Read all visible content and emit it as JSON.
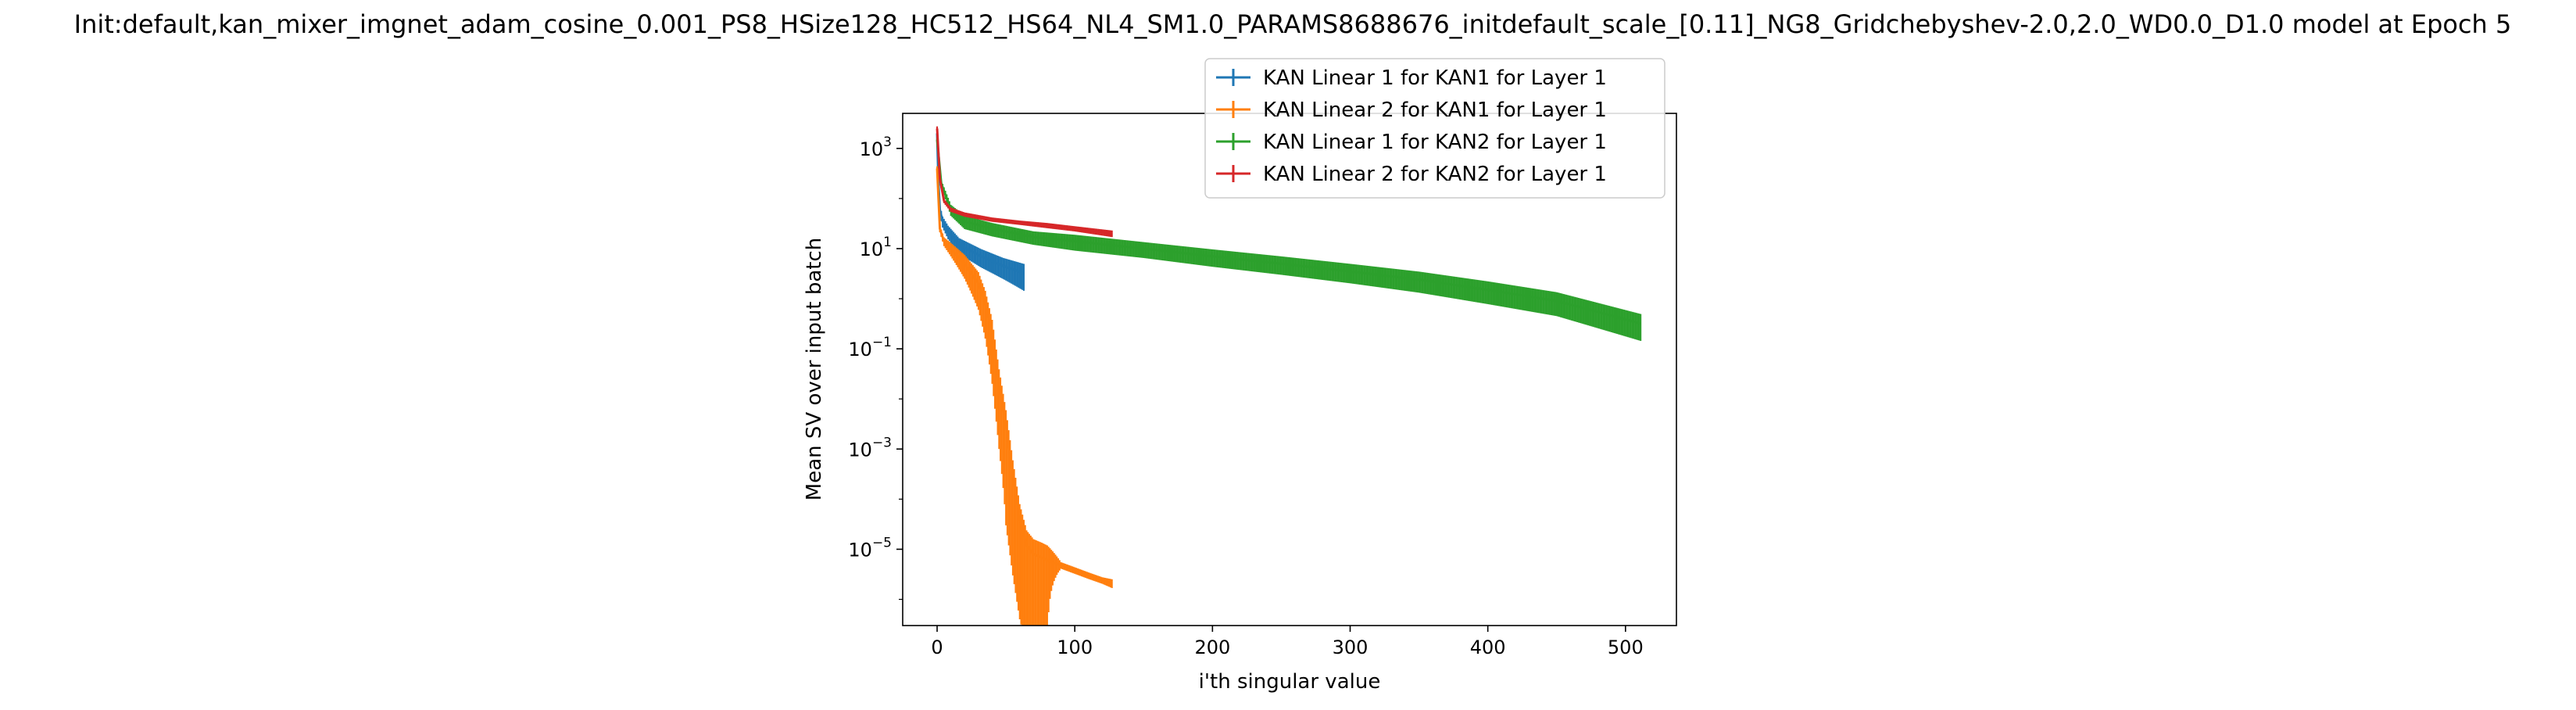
{
  "chart_data": {
    "type": "line",
    "title": "Init:default,kan_mixer_imgnet_adam_cosine_0.001_PS8_HSize128_HC512_HS64_NL4_SM1.0_PARAMS8688676_initdefault_scale_[0.11]_NG8_Gridchebyshev-2.0,2.0_WD0.0_D1.0 model at Epoch 5",
    "xlabel": "i'th singular value",
    "ylabel": "Mean SV over input batch",
    "xscale": "linear",
    "yscale": "log",
    "xlim": [
      -25,
      537
    ],
    "ylim": [
      3e-07,
      5000
    ],
    "xticks": [
      0,
      100,
      200,
      300,
      400,
      500
    ],
    "xtick_labels": [
      "0",
      "100",
      "200",
      "300",
      "400",
      "500"
    ],
    "yticks": [
      1e-05,
      0.001,
      0.1,
      10,
      1000
    ],
    "ytick_bases": [
      "10",
      "10",
      "10",
      "10",
      "10"
    ],
    "ytick_exponents": [
      "−5",
      "−3",
      "−1",
      "1",
      "3"
    ],
    "grid": false,
    "error_bars": true,
    "legend_position": "top-right",
    "series": [
      {
        "name": "KAN Linear 1 for KAN1 for Layer 1",
        "color": "#1f77b4",
        "n": 64,
        "x": [
          0,
          1,
          2,
          4,
          8,
          16,
          32,
          48,
          63
        ],
        "y": [
          2000,
          200,
          60,
          35,
          22,
          12,
          7,
          4.5,
          3.2
        ],
        "rel_err": [
          0.15,
          0.2,
          0.2,
          0.25,
          0.3,
          0.35,
          0.4,
          0.45,
          0.55
        ]
      },
      {
        "name": "KAN Linear 2 for KAN1 for Layer 1",
        "color": "#ff7f0e",
        "n": 128,
        "x": [
          0,
          2,
          5,
          10,
          20,
          30,
          35,
          40,
          45,
          50,
          55,
          60,
          65,
          70,
          75,
          80,
          90,
          100,
          110,
          120,
          127
        ],
        "y": [
          400,
          25,
          14,
          10,
          5,
          2,
          0.8,
          0.2,
          0.02,
          0.003,
          0.0003,
          4e-05,
          1.2e-05,
          8e-06,
          7e-06,
          6e-06,
          4.8e-06,
          3.8e-06,
          3e-06,
          2.4e-06,
          2.1e-06
        ],
        "rel_err": [
          0.1,
          0.15,
          0.2,
          0.3,
          0.5,
          0.7,
          0.8,
          0.9,
          0.95,
          0.99,
          0.99,
          0.99,
          0.99,
          0.99,
          0.99,
          0.99,
          0.15,
          0.15,
          0.15,
          0.15,
          0.2
        ]
      },
      {
        "name": "KAN Linear 1 for KAN2 for Layer 1",
        "color": "#2ca02c",
        "n": 512,
        "x": [
          0,
          3,
          10,
          20,
          40,
          70,
          100,
          150,
          200,
          250,
          300,
          350,
          400,
          450,
          511
        ],
        "y": [
          1500,
          200,
          60,
          35,
          25,
          17,
          14,
          10,
          7,
          5,
          3.5,
          2.4,
          1.5,
          0.9,
          0.32
        ],
        "rel_err": [
          0.1,
          0.15,
          0.25,
          0.3,
          0.3,
          0.3,
          0.35,
          0.35,
          0.38,
          0.4,
          0.42,
          0.45,
          0.48,
          0.5,
          0.55
        ]
      },
      {
        "name": "KAN Linear 2 for KAN2 for Layer 1",
        "color": "#d62728",
        "n": 128,
        "x": [
          0,
          2,
          5,
          10,
          20,
          40,
          60,
          80,
          100,
          127
        ],
        "y": [
          2500,
          250,
          90,
          60,
          48,
          38,
          33,
          29,
          25,
          20
        ],
        "rel_err": [
          0.1,
          0.1,
          0.1,
          0.1,
          0.1,
          0.1,
          0.1,
          0.12,
          0.12,
          0.15
        ]
      }
    ]
  }
}
